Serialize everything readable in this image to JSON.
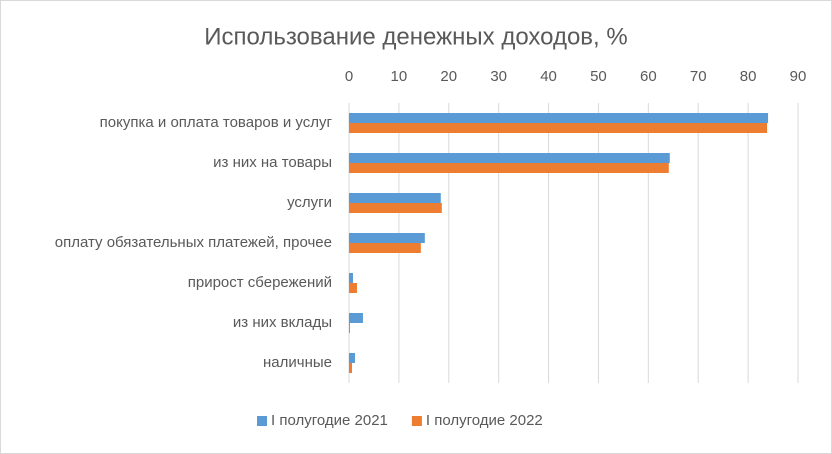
{
  "chart_data": {
    "type": "hbar",
    "title": "Использование денежных доходов, %",
    "categories": [
      "покупка и оплата товаров и услуг",
      "из них на товары",
      "услуги",
      "оплату обязательных платежей, прочее",
      "прирост сбережений",
      "из них вклады",
      "наличные"
    ],
    "series": [
      {
        "name": "I полугодие 2021",
        "color": "#5b9bd5",
        "values": [
          84.0,
          64.3,
          18.4,
          15.2,
          0.8,
          2.8,
          1.2
        ]
      },
      {
        "name": "I полугодие 2022",
        "color": "#ed7d31",
        "values": [
          83.8,
          64.1,
          18.6,
          14.4,
          1.6,
          0.2,
          0.6
        ]
      }
    ],
    "xlim": [
      0,
      90
    ],
    "xticks": [
      0,
      10,
      20,
      30,
      40,
      50,
      60,
      70,
      80,
      90
    ],
    "grid": true,
    "legend": "bottom"
  }
}
